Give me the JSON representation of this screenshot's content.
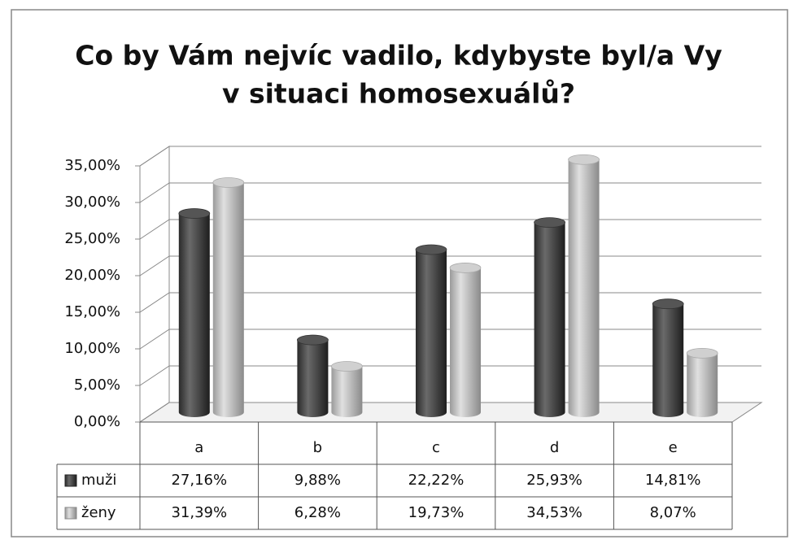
{
  "chart_data": {
    "type": "bar3d",
    "title": "Co by Vám nejvíc vadilo, kdybyste byl/a Vy",
    "subtitle": "v situaci homosexuálů?",
    "categories": [
      "a",
      "b",
      "c",
      "d",
      "e"
    ],
    "series": [
      {
        "name": "muži",
        "color": "#3c3c3c",
        "values": [
          27.16,
          9.88,
          22.22,
          25.93,
          14.81
        ],
        "value_labels": [
          "27,16%",
          "9,88%",
          "22,22%",
          "25,93%",
          "14,81%"
        ]
      },
      {
        "name": "ženy",
        "color": "#b4b4b4",
        "values": [
          31.39,
          6.28,
          19.73,
          34.53,
          8.07
        ],
        "value_labels": [
          "31,39%",
          "6,28%",
          "19,73%",
          "34,53%",
          "8,07%"
        ]
      }
    ],
    "ylim": [
      0,
      35
    ],
    "yticks": [
      {
        "value": 0,
        "label": "0,00%"
      },
      {
        "value": 5,
        "label": "5,00%"
      },
      {
        "value": 10,
        "label": "10,00%"
      },
      {
        "value": 15,
        "label": "15,00%"
      },
      {
        "value": 20,
        "label": "20,00%"
      },
      {
        "value": 25,
        "label": "25,00%"
      },
      {
        "value": 30,
        "label": "30,00%"
      },
      {
        "value": 35,
        "label": "35,00%"
      }
    ],
    "grid": true
  }
}
